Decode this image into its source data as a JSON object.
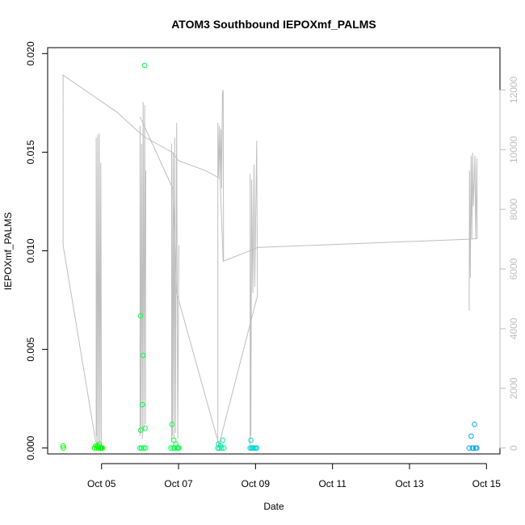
{
  "chart_data": {
    "type": "scatter",
    "title": "ATOM3 Southbound IEPOXmf_PALMS",
    "xlabel": "Date",
    "ylabel": "IEPOXmf_PALMS",
    "x_ticks": [
      "Oct 05",
      "Oct 07",
      "Oct 09",
      "Oct 11",
      "Oct 13",
      "Oct 15"
    ],
    "x_tick_days": [
      5,
      7,
      9,
      11,
      13,
      15
    ],
    "xlim": [
      3.6,
      15.35
    ],
    "y_ticks": [
      "0.000",
      "0.005",
      "0.010",
      "0.015",
      "0.020"
    ],
    "y_tick_values": [
      0,
      0.005,
      0.01,
      0.015,
      0.02
    ],
    "ylim": [
      -0.0003,
      0.0203
    ],
    "y2_ticks": [
      "0",
      "2000",
      "4000",
      "6000",
      "8000",
      "10000",
      "12000"
    ],
    "y2_tick_values": [
      0,
      2000,
      4000,
      6000,
      8000,
      10000,
      12000
    ],
    "y2lim": [
      -200,
      13420
    ],
    "colors": {
      "line": "#bebebe",
      "green": "#00ff00",
      "green2": "#00ff44",
      "teal": "#00e8a0",
      "cyan": "#00d0d0",
      "blue": "#00a8f0"
    },
    "points": [
      {
        "x": 4.0,
        "y": 0.0001,
        "c": "green"
      },
      {
        "x": 4.01,
        "y": 0.0,
        "c": "green"
      },
      {
        "x": 4.82,
        "y": 0.0,
        "c": "green"
      },
      {
        "x": 4.85,
        "y": 0.0001,
        "c": "green"
      },
      {
        "x": 4.87,
        "y": 0.0,
        "c": "green"
      },
      {
        "x": 4.9,
        "y": 0.0001,
        "c": "green"
      },
      {
        "x": 4.92,
        "y": 0.0,
        "c": "green"
      },
      {
        "x": 4.94,
        "y": 0.0002,
        "c": "green"
      },
      {
        "x": 4.96,
        "y": 0.0,
        "c": "green"
      },
      {
        "x": 4.98,
        "y": 0.0,
        "c": "green"
      },
      {
        "x": 5.0,
        "y": 0.0,
        "c": "green"
      },
      {
        "x": 5.02,
        "y": 0.0,
        "c": "green"
      },
      {
        "x": 6.0,
        "y": 0.0,
        "c": "green2"
      },
      {
        "x": 6.01,
        "y": 0.0067,
        "c": "green2"
      },
      {
        "x": 6.02,
        "y": 0.0009,
        "c": "green2"
      },
      {
        "x": 6.04,
        "y": 0.0,
        "c": "green2"
      },
      {
        "x": 6.06,
        "y": 0.0022,
        "c": "green2"
      },
      {
        "x": 6.08,
        "y": 0.0047,
        "c": "green2"
      },
      {
        "x": 6.1,
        "y": 0.0,
        "c": "green2"
      },
      {
        "x": 6.12,
        "y": 0.0194,
        "c": "green2"
      },
      {
        "x": 6.13,
        "y": 0.001,
        "c": "green2"
      },
      {
        "x": 6.14,
        "y": 0.0,
        "c": "green2"
      },
      {
        "x": 6.8,
        "y": 0.0,
        "c": "green2"
      },
      {
        "x": 6.83,
        "y": 0.0012,
        "c": "green2"
      },
      {
        "x": 6.86,
        "y": 0.0,
        "c": "green2"
      },
      {
        "x": 6.88,
        "y": 0.0004,
        "c": "green2"
      },
      {
        "x": 6.9,
        "y": 0.0,
        "c": "green2"
      },
      {
        "x": 6.93,
        "y": 0.0002,
        "c": "green2"
      },
      {
        "x": 6.96,
        "y": 0.0,
        "c": "green2"
      },
      {
        "x": 6.99,
        "y": 0.0,
        "c": "green2"
      },
      {
        "x": 7.01,
        "y": 0.0,
        "c": "green2"
      },
      {
        "x": 8.02,
        "y": 0.0,
        "c": "teal"
      },
      {
        "x": 8.04,
        "y": 0.0002,
        "c": "teal"
      },
      {
        "x": 8.06,
        "y": 0.0,
        "c": "teal"
      },
      {
        "x": 8.09,
        "y": 0.0001,
        "c": "teal"
      },
      {
        "x": 8.12,
        "y": 0.0,
        "c": "teal"
      },
      {
        "x": 8.15,
        "y": 0.0004,
        "c": "teal"
      },
      {
        "x": 8.18,
        "y": 0.0,
        "c": "teal"
      },
      {
        "x": 8.86,
        "y": 0.0,
        "c": "cyan"
      },
      {
        "x": 8.88,
        "y": 0.0004,
        "c": "cyan"
      },
      {
        "x": 8.9,
        "y": 0.0,
        "c": "cyan"
      },
      {
        "x": 8.93,
        "y": 0.0,
        "c": "cyan"
      },
      {
        "x": 8.96,
        "y": 0.0,
        "c": "cyan"
      },
      {
        "x": 9.0,
        "y": 0.0,
        "c": "cyan"
      },
      {
        "x": 9.03,
        "y": 0.0,
        "c": "cyan"
      },
      {
        "x": 14.55,
        "y": 0.0,
        "c": "blue"
      },
      {
        "x": 14.6,
        "y": 0.0006,
        "c": "blue"
      },
      {
        "x": 14.63,
        "y": 0.0,
        "c": "blue"
      },
      {
        "x": 14.66,
        "y": 0.0,
        "c": "blue"
      },
      {
        "x": 14.69,
        "y": 0.0012,
        "c": "blue"
      },
      {
        "x": 14.72,
        "y": 0.0,
        "c": "blue"
      },
      {
        "x": 14.75,
        "y": 0.0,
        "c": "blue"
      }
    ],
    "line_y2": [
      [
        4.0,
        6800
      ],
      [
        4.0,
        12500
      ],
      [
        4.9,
        11700
      ],
      [
        5.4,
        11260
      ],
      [
        6.0,
        10550
      ],
      [
        6.15,
        10400
      ],
      [
        6.85,
        9900
      ],
      [
        7.0,
        9630
      ],
      [
        7.7,
        9300
      ],
      [
        8.0,
        9090
      ],
      [
        8.08,
        9050
      ],
      [
        8.16,
        6260
      ],
      [
        8.8,
        6580
      ],
      [
        9.05,
        6720
      ],
      [
        14.55,
        7000
      ],
      [
        14.76,
        7020
      ]
    ],
    "line_y2_lower": [
      [
        4.0,
        6800
      ],
      [
        4.85,
        200
      ],
      [
        5.0,
        100
      ]
    ],
    "line_y2_cross": [
      [
        6.0,
        11100
      ],
      [
        6.85,
        8700
      ],
      [
        6.95,
        5200
      ],
      [
        8.05,
        100
      ],
      [
        9.05,
        5100
      ]
    ],
    "spikes_y2": [
      [
        [
          4.86,
          400
        ],
        [
          4.86,
          10400
        ],
        [
          4.88,
          100
        ],
        [
          4.9,
          10500
        ],
        [
          4.92,
          100
        ],
        [
          4.94,
          10550
        ],
        [
          4.96,
          100
        ],
        [
          4.98,
          9560
        ],
        [
          5.0,
          100
        ]
      ],
      [
        [
          6.0,
          400
        ],
        [
          6.0,
          10800
        ],
        [
          6.02,
          500
        ],
        [
          6.04,
          10200
        ],
        [
          6.06,
          300
        ],
        [
          6.08,
          11600
        ],
        [
          6.1,
          600
        ],
        [
          6.12,
          11500
        ],
        [
          6.14,
          800
        ],
        [
          6.15,
          9300
        ]
      ],
      [
        [
          6.82,
          200
        ],
        [
          6.82,
          10200
        ],
        [
          6.84,
          400
        ],
        [
          6.86,
          9900
        ],
        [
          6.88,
          300
        ],
        [
          6.9,
          10400
        ],
        [
          6.92,
          500
        ],
        [
          6.95,
          10900
        ],
        [
          6.98,
          300
        ],
        [
          7.01,
          6800
        ]
      ],
      [
        [
          8.02,
          200
        ],
        [
          8.02,
          10900
        ],
        [
          8.04,
          9100
        ],
        [
          8.06,
          10800
        ],
        [
          8.08,
          9000
        ],
        [
          8.1,
          10700
        ],
        [
          8.12,
          8700
        ],
        [
          8.14,
          11900
        ],
        [
          8.16,
          12000
        ],
        [
          8.17,
          6260
        ]
      ],
      [
        [
          8.86,
          100
        ],
        [
          8.86,
          9200
        ],
        [
          8.88,
          400
        ],
        [
          8.9,
          9000
        ],
        [
          8.93,
          5200
        ],
        [
          8.96,
          9500
        ],
        [
          8.98,
          5400
        ],
        [
          9.03,
          10300
        ],
        [
          9.05,
          5100
        ]
      ],
      [
        [
          14.55,
          4600
        ],
        [
          14.56,
          9300
        ],
        [
          14.58,
          5700
        ],
        [
          14.6,
          9800
        ],
        [
          14.62,
          7000
        ],
        [
          14.64,
          9900
        ],
        [
          14.66,
          8100
        ],
        [
          14.7,
          9800
        ],
        [
          14.72,
          7000
        ],
        [
          14.75,
          9700
        ],
        [
          14.76,
          7020
        ]
      ]
    ]
  }
}
